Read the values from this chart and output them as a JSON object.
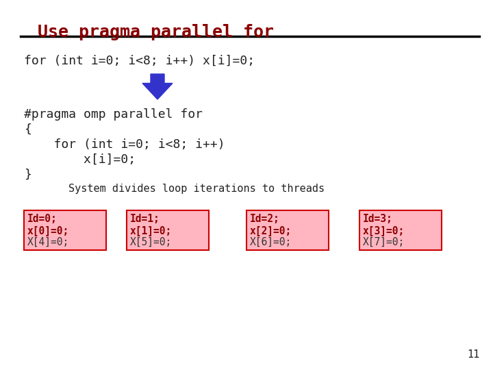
{
  "title": "Use pragma parallel for",
  "title_color": "#8B0000",
  "title_font": "Courier New",
  "bg_color": "#FFFFFF",
  "line1": "for (int i=0; i<8; i++) x[i]=0;",
  "pragma_line1": "#pragma omp parallel for",
  "pragma_line2": "{",
  "pragma_line3": "    for (int i=0; i<8; i++)",
  "pragma_line4": "        x[i]=0;",
  "pragma_line5": "}",
  "system_text": "System divides loop iterations to threads",
  "boxes": [
    {
      "line1": "Id=0;",
      "line2": "x[0]=0;",
      "line3": "X[4]=0;"
    },
    {
      "line1": "Id=1;",
      "line2": "x[1]=0;",
      "line3": "X[5]=0;"
    },
    {
      "line1": "Id=2;",
      "line2": "x[2]=0;",
      "line3": "X[6]=0;"
    },
    {
      "line1": "Id=3;",
      "line2": "x[3]=0;",
      "line3": "X[7]=0;"
    }
  ],
  "box_bg_color": "#FFB6C1",
  "box_border_color": "#CC0000",
  "box_text_color_bold": "#8B0000",
  "box_text_color_normal": "#333333",
  "arrow_color": "#3333CC",
  "code_color": "#222222",
  "slide_number": "11"
}
